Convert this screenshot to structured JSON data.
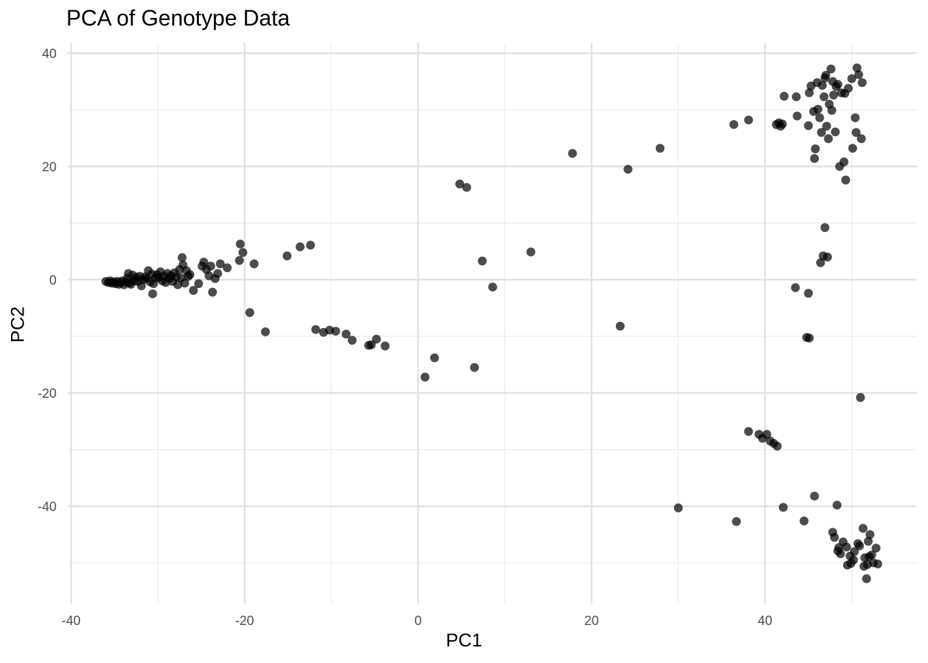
{
  "chart_data": {
    "type": "scatter",
    "title": "PCA of Genotype Data",
    "xlabel": "PC1",
    "ylabel": "PC2",
    "xlim": [
      -40,
      52
    ],
    "ylim": [
      -53,
      40
    ],
    "x_ticks": [
      -40,
      -20,
      0,
      20,
      40
    ],
    "y_ticks": [
      40,
      20,
      0,
      -20,
      -40
    ],
    "grid": true,
    "point_color": "#000000",
    "point_opacity": 0.7,
    "series": [
      {
        "points": [
          [
            -36.0,
            -0.3
          ],
          [
            -35.7,
            -0.5
          ],
          [
            -35.5,
            -0.2
          ],
          [
            -35.3,
            -0.6
          ],
          [
            -35.1,
            -0.4
          ],
          [
            -34.9,
            -0.7
          ],
          [
            -34.7,
            -0.3
          ],
          [
            -34.5,
            -0.8
          ],
          [
            -34.3,
            -0.5
          ],
          [
            -34.1,
            -0.2
          ],
          [
            -33.9,
            -0.9
          ],
          [
            -33.7,
            -0.4
          ],
          [
            -33.5,
            0.3
          ],
          [
            -33.3,
            -0.6
          ],
          [
            -33.1,
            -0.8
          ],
          [
            -32.9,
            0.8
          ],
          [
            -32.7,
            -0.2
          ],
          [
            -32.5,
            0.4
          ],
          [
            -32.3,
            -0.3
          ],
          [
            -32.1,
            0.6
          ],
          [
            -31.9,
            -1.1
          ],
          [
            -31.7,
            0.0
          ],
          [
            -31.5,
            0.5
          ],
          [
            -31.3,
            0.2
          ],
          [
            -31.1,
            1.6
          ],
          [
            -30.9,
            -0.4
          ],
          [
            -30.7,
            1.0
          ],
          [
            -30.5,
            -0.7
          ],
          [
            -30.3,
            0.3
          ],
          [
            -30.1,
            0.9
          ],
          [
            -29.9,
            0.4
          ],
          [
            -29.7,
            1.4
          ],
          [
            -29.5,
            -0.2
          ],
          [
            -29.3,
            0.6
          ],
          [
            -29.1,
            -0.5
          ],
          [
            -28.9,
            1.1
          ],
          [
            -28.7,
            0.2
          ],
          [
            -28.5,
            0.7
          ],
          [
            -28.3,
            -0.3
          ],
          [
            -28.1,
            1.2
          ],
          [
            -27.9,
            0.5
          ],
          [
            -27.7,
            -0.9
          ],
          [
            -27.5,
            1.8
          ],
          [
            -27.3,
            0.3
          ],
          [
            -27.1,
            2.6
          ],
          [
            -26.9,
            -0.6
          ],
          [
            -26.7,
            1.6
          ],
          [
            -26.5,
            0.6
          ],
          [
            -27.2,
            3.9
          ],
          [
            -26.3,
            0.9
          ],
          [
            -33.4,
            1.1
          ],
          [
            -30.6,
            -2.5
          ],
          [
            -25.9,
            -1.9
          ],
          [
            -25.3,
            -0.7
          ],
          [
            -24.9,
            2.4
          ],
          [
            -24.7,
            3.1
          ],
          [
            -24.4,
            1.8
          ],
          [
            -24.1,
            0.7
          ],
          [
            -23.7,
            -2.2
          ],
          [
            -23.9,
            2.4
          ],
          [
            -23.4,
            0.2
          ],
          [
            -23.1,
            1.1
          ],
          [
            -22.8,
            2.8
          ],
          [
            -22.0,
            2.1
          ],
          [
            -20.5,
            6.3
          ],
          [
            -20.6,
            3.4
          ],
          [
            -20.2,
            4.8
          ],
          [
            -18.9,
            2.8
          ],
          [
            -19.4,
            -5.8
          ],
          [
            -17.6,
            -9.2
          ],
          [
            -15.1,
            4.2
          ],
          [
            -13.6,
            5.8
          ],
          [
            -12.4,
            6.1
          ],
          [
            -11.8,
            -8.8
          ],
          [
            -10.9,
            -9.3
          ],
          [
            -10.2,
            -8.9
          ],
          [
            -9.5,
            -9.1
          ],
          [
            -8.3,
            -9.6
          ],
          [
            -7.6,
            -10.7
          ],
          [
            -5.7,
            -11.6
          ],
          [
            -5.4,
            -11.5
          ],
          [
            -4.8,
            -10.5
          ],
          [
            -3.8,
            -11.7
          ],
          [
            0.8,
            -17.2
          ],
          [
            1.9,
            -13.8
          ],
          [
            4.8,
            16.9
          ],
          [
            5.6,
            16.3
          ],
          [
            6.5,
            -15.5
          ],
          [
            7.4,
            3.3
          ],
          [
            8.6,
            -1.3
          ],
          [
            13.0,
            4.9
          ],
          [
            17.8,
            22.3
          ],
          [
            23.3,
            -8.2
          ],
          [
            24.2,
            19.5
          ],
          [
            27.9,
            23.2
          ],
          [
            30.0,
            -40.3
          ],
          [
            36.4,
            27.4
          ],
          [
            36.7,
            -42.7
          ],
          [
            38.1,
            28.2
          ],
          [
            38.1,
            -26.8
          ],
          [
            39.3,
            -27.3
          ],
          [
            39.7,
            -28.0
          ],
          [
            40.2,
            -27.3
          ],
          [
            40.6,
            -28.5
          ],
          [
            41.0,
            -28.9
          ],
          [
            41.4,
            -29.4
          ],
          [
            41.3,
            27.4
          ],
          [
            41.6,
            27.7
          ],
          [
            41.8,
            27.1
          ],
          [
            42.0,
            27.5
          ],
          [
            42.2,
            32.4
          ],
          [
            42.1,
            -40.2
          ],
          [
            43.6,
            32.3
          ],
          [
            43.7,
            28.9
          ],
          [
            43.5,
            -1.4
          ],
          [
            44.5,
            -42.6
          ],
          [
            44.8,
            -10.2
          ],
          [
            45.1,
            -10.3
          ],
          [
            45.0,
            -2.4
          ],
          [
            45.0,
            27.2
          ],
          [
            45.1,
            33.0
          ],
          [
            45.3,
            34.2
          ],
          [
            45.6,
            29.7
          ],
          [
            45.8,
            23.1
          ],
          [
            45.7,
            21.4
          ],
          [
            45.7,
            -38.2
          ],
          [
            46.0,
            34.8
          ],
          [
            46.1,
            30.1
          ],
          [
            46.3,
            28.6
          ],
          [
            46.4,
            3.0
          ],
          [
            46.5,
            26.0
          ],
          [
            46.6,
            34.3
          ],
          [
            46.7,
            4.2
          ],
          [
            46.8,
            32.3
          ],
          [
            46.9,
            9.2
          ],
          [
            47.0,
            36.1
          ],
          [
            47.1,
            27.1
          ],
          [
            47.2,
            4.0
          ],
          [
            47.3,
            24.9
          ],
          [
            47.4,
            31.0
          ],
          [
            47.6,
            37.2
          ],
          [
            47.7,
            29.9
          ],
          [
            47.8,
            35.0
          ],
          [
            47.9,
            32.6
          ],
          [
            48.0,
            -45.5
          ],
          [
            48.1,
            26.1
          ],
          [
            48.2,
            34.1
          ],
          [
            48.3,
            -39.8
          ],
          [
            48.4,
            -47.9
          ],
          [
            48.6,
            20.0
          ],
          [
            48.8,
            33.0
          ],
          [
            49.0,
            -46.3
          ],
          [
            49.1,
            20.8
          ],
          [
            49.3,
            17.6
          ],
          [
            49.4,
            -47.2
          ],
          [
            49.6,
            33.8
          ],
          [
            49.8,
            -48.8
          ],
          [
            50.0,
            35.5
          ],
          [
            50.1,
            23.2
          ],
          [
            50.2,
            -49.5
          ],
          [
            50.4,
            28.6
          ],
          [
            50.5,
            26.0
          ],
          [
            50.6,
            37.4
          ],
          [
            50.8,
            36.2
          ],
          [
            50.9,
            -47.0
          ],
          [
            51.0,
            -20.8
          ],
          [
            51.1,
            24.9
          ],
          [
            51.2,
            34.8
          ],
          [
            51.3,
            -43.9
          ],
          [
            51.5,
            -49.1
          ],
          [
            51.7,
            -52.8
          ],
          [
            51.9,
            -46.2
          ],
          [
            52.1,
            -45.0
          ],
          [
            52.3,
            -48.6
          ],
          [
            52.5,
            -50.0
          ],
          [
            52.8,
            -47.4
          ],
          [
            53.0,
            -50.2
          ],
          [
            48.5,
            -47.3
          ],
          [
            49.5,
            -50.4
          ],
          [
            50.3,
            -48.0
          ],
          [
            51.4,
            -50.6
          ],
          [
            48.7,
            -48.4
          ],
          [
            50.7,
            -46.6
          ],
          [
            52.0,
            -48.9
          ],
          [
            47.8,
            -44.6
          ],
          [
            49.9,
            -50.1
          ],
          [
            51.8,
            -50.3
          ],
          [
            46.9,
            35.6
          ],
          [
            48.4,
            34.5
          ],
          [
            49.2,
            32.9
          ]
        ]
      }
    ]
  }
}
